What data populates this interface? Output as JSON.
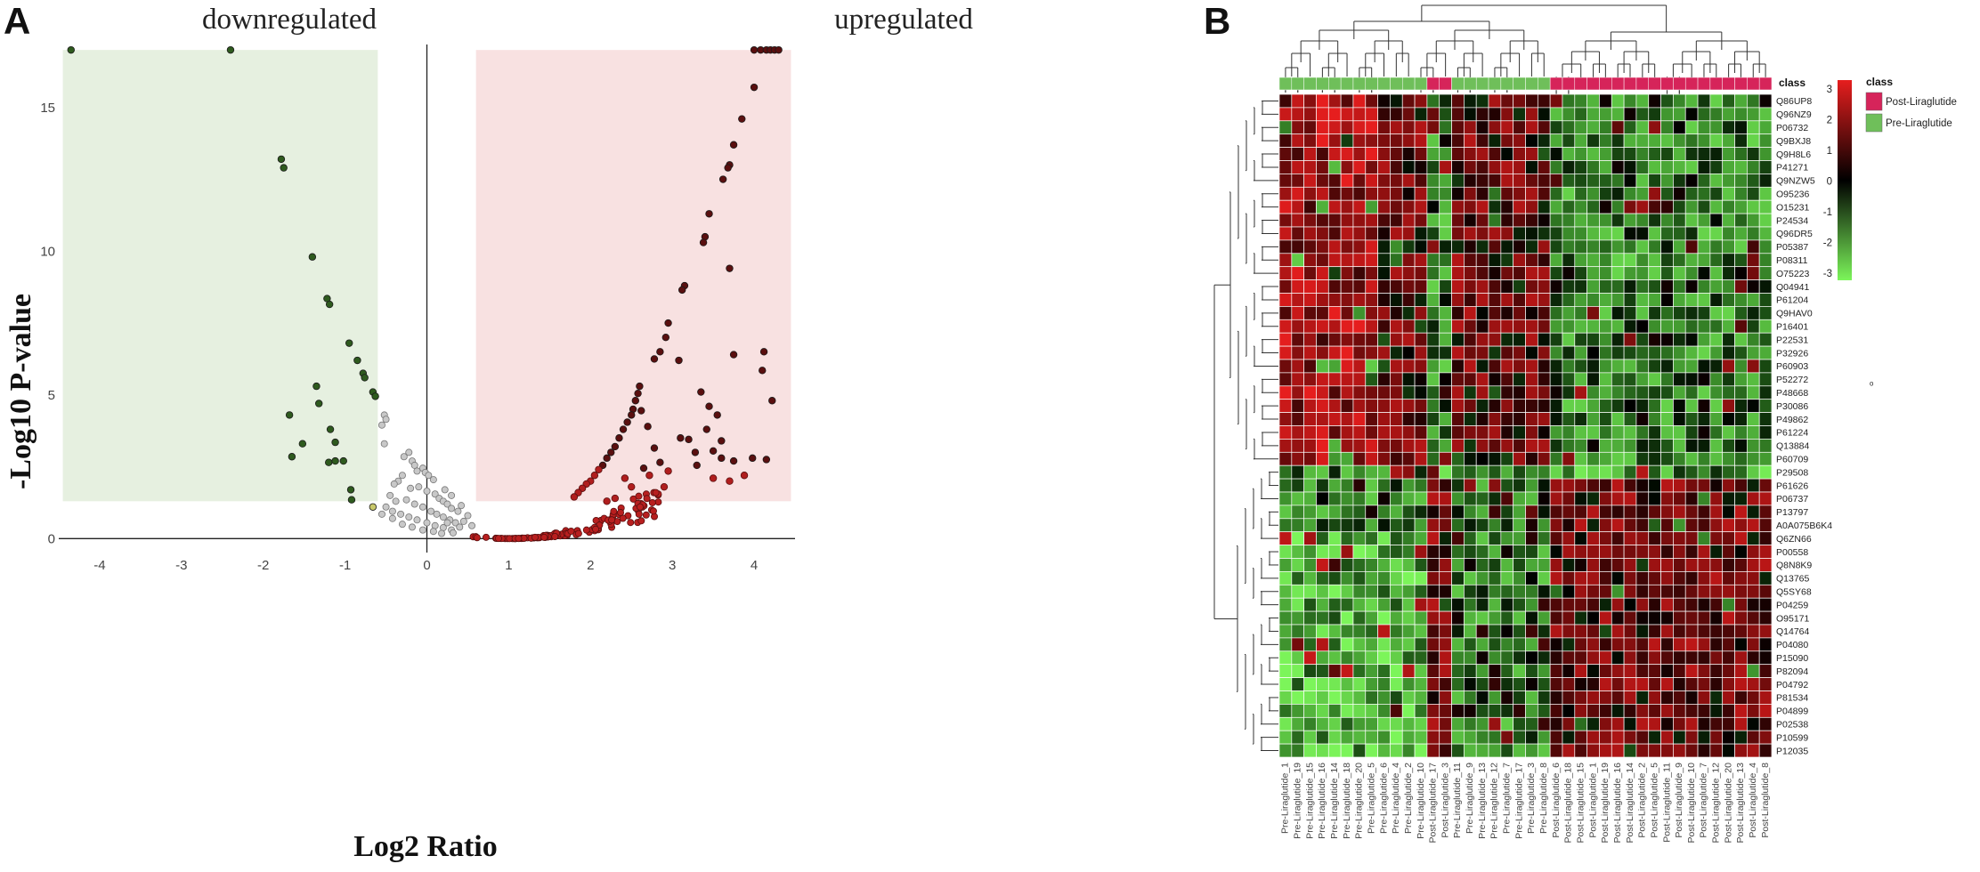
{
  "panels": {
    "a_label": "A",
    "b_label": "B"
  },
  "chart_data": [
    {
      "type": "scatter",
      "id": "volcano",
      "title": "",
      "region_left_label": "downregulated",
      "region_right_label": "upregulated",
      "xlabel": "Log2 Ratio",
      "ylabel": "-Log10 P-value",
      "xlim": [
        -4.5,
        4.5
      ],
      "ylim": [
        -0.3,
        17.5
      ],
      "xticks": [
        -4,
        -3,
        -2,
        -1,
        0,
        1,
        2,
        3,
        4
      ],
      "yticks": [
        0,
        5,
        10,
        15
      ],
      "shaded_regions": [
        {
          "name": "downregulated",
          "x": [
            -4.45,
            -0.6
          ],
          "y": [
            1.3,
            17.0
          ],
          "color": "#e6f0e0"
        },
        {
          "name": "upregulated",
          "x": [
            0.6,
            4.45
          ],
          "y": [
            1.3,
            17.0
          ],
          "color": "#f8e1e1"
        }
      ],
      "reference_lines": {
        "vertical_x": 0,
        "horizontal_y": 0
      },
      "colors": {
        "down": "#2e5a1e",
        "up": "#8b1a1a",
        "up_dark": "#5a0f0f",
        "ns": "#c8c8c8",
        "ns_edge": "#777777",
        "highlight": "#c8c86a"
      },
      "series": [
        {
          "name": "downregulated",
          "color": "#2e5a1e",
          "points": [
            [
              -4.35,
              17.0
            ],
            [
              -2.4,
              17.0
            ],
            [
              -1.78,
              13.2
            ],
            [
              -1.75,
              12.9
            ],
            [
              -1.4,
              9.8
            ],
            [
              -1.22,
              8.35
            ],
            [
              -1.19,
              8.15
            ],
            [
              -1.35,
              5.3
            ],
            [
              -1.32,
              4.7
            ],
            [
              -1.68,
              4.3
            ],
            [
              -0.95,
              6.8
            ],
            [
              -0.85,
              6.2
            ],
            [
              -0.78,
              5.75
            ],
            [
              -0.76,
              5.6
            ],
            [
              -0.66,
              5.1
            ],
            [
              -0.63,
              4.95
            ],
            [
              -1.18,
              3.8
            ],
            [
              -1.12,
              3.35
            ],
            [
              -1.52,
              3.3
            ],
            [
              -1.65,
              2.85
            ],
            [
              -1.2,
              2.65
            ],
            [
              -1.12,
              2.7
            ],
            [
              -1.02,
              2.7
            ],
            [
              -0.93,
              1.7
            ],
            [
              -0.92,
              1.35
            ]
          ]
        },
        {
          "name": "upregulated",
          "color": "#8b1a1a",
          "points": [
            [
              4.0,
              17.0
            ],
            [
              4.08,
              17.0
            ],
            [
              4.15,
              17.0
            ],
            [
              4.2,
              17.0
            ],
            [
              4.25,
              17.0
            ],
            [
              4.3,
              17.0
            ],
            [
              4.0,
              15.7
            ],
            [
              3.85,
              14.6
            ],
            [
              3.75,
              13.7
            ],
            [
              3.7,
              13.0
            ],
            [
              3.68,
              12.9
            ],
            [
              3.62,
              12.5
            ],
            [
              3.45,
              11.3
            ],
            [
              3.4,
              10.5
            ],
            [
              3.38,
              10.3
            ],
            [
              3.15,
              8.8
            ],
            [
              3.12,
              8.65
            ],
            [
              2.95,
              7.5
            ],
            [
              2.92,
              7.0
            ],
            [
              2.85,
              6.5
            ],
            [
              2.78,
              6.25
            ],
            [
              3.7,
              9.4
            ],
            [
              3.75,
              6.4
            ],
            [
              4.12,
              6.5
            ],
            [
              4.1,
              5.85
            ],
            [
              4.22,
              4.8
            ],
            [
              3.08,
              6.2
            ],
            [
              3.35,
              5.1
            ],
            [
              3.45,
              4.6
            ],
            [
              3.55,
              4.3
            ],
            [
              3.42,
              3.8
            ],
            [
              3.5,
              3.05
            ],
            [
              3.6,
              3.4
            ],
            [
              3.6,
              2.8
            ],
            [
              3.75,
              2.7
            ],
            [
              3.88,
              2.2
            ],
            [
              3.98,
              2.8
            ],
            [
              4.15,
              2.75
            ],
            [
              3.1,
              3.5
            ],
            [
              3.2,
              3.45
            ],
            [
              3.28,
              3.0
            ],
            [
              3.3,
              2.55
            ],
            [
              3.5,
              2.1
            ],
            [
              3.7,
              2.0
            ],
            [
              2.6,
              5.3
            ],
            [
              2.58,
              5.05
            ],
            [
              2.55,
              4.8
            ],
            [
              2.52,
              4.5
            ],
            [
              2.5,
              4.3
            ],
            [
              2.45,
              4.05
            ],
            [
              2.4,
              3.8
            ],
            [
              2.35,
              3.5
            ],
            [
              2.3,
              3.2
            ],
            [
              2.25,
              3.0
            ],
            [
              2.2,
              2.8
            ],
            [
              2.15,
              2.55
            ],
            [
              2.1,
              2.4
            ],
            [
              2.05,
              2.2
            ],
            [
              2.0,
              2.0
            ],
            [
              1.95,
              1.9
            ],
            [
              1.9,
              1.75
            ],
            [
              1.85,
              1.6
            ],
            [
              1.8,
              1.45
            ],
            [
              2.62,
              4.45
            ],
            [
              2.7,
              3.9
            ],
            [
              2.78,
              3.15
            ],
            [
              2.65,
              2.45
            ],
            [
              2.72,
              2.2
            ],
            [
              2.85,
              2.65
            ],
            [
              2.9,
              1.8
            ],
            [
              2.95,
              2.35
            ],
            [
              2.5,
              1.8
            ],
            [
              2.42,
              2.1
            ],
            [
              2.3,
              1.4
            ],
            [
              2.2,
              1.3
            ]
          ]
        },
        {
          "name": "not_significant",
          "color": "#c8c8c8",
          "points": [
            [
              -0.52,
              4.3
            ],
            [
              -0.5,
              4.15
            ],
            [
              -0.55,
              3.95
            ],
            [
              -0.52,
              3.3
            ],
            [
              -0.22,
              3.0
            ],
            [
              -0.28,
              2.85
            ],
            [
              -0.18,
              2.7
            ],
            [
              -0.15,
              2.55
            ],
            [
              -0.05,
              2.45
            ],
            [
              -0.02,
              2.3
            ],
            [
              0.02,
              2.2
            ],
            [
              0.08,
              2.05
            ],
            [
              -0.12,
              2.35
            ],
            [
              -0.3,
              2.2
            ],
            [
              -0.35,
              2.0
            ],
            [
              -0.4,
              1.9
            ],
            [
              -0.2,
              1.75
            ],
            [
              -0.1,
              1.8
            ],
            [
              0.0,
              1.65
            ],
            [
              0.1,
              1.55
            ],
            [
              0.15,
              1.4
            ],
            [
              0.2,
              1.3
            ],
            [
              0.25,
              1.2
            ],
            [
              0.3,
              1.05
            ],
            [
              -0.45,
              1.5
            ],
            [
              -0.38,
              1.3
            ],
            [
              -0.25,
              1.35
            ],
            [
              -0.15,
              1.2
            ],
            [
              -0.05,
              1.1
            ],
            [
              0.05,
              0.95
            ],
            [
              0.12,
              0.85
            ],
            [
              0.2,
              0.75
            ],
            [
              0.28,
              0.65
            ],
            [
              0.35,
              0.55
            ],
            [
              -0.5,
              1.1
            ],
            [
              -0.42,
              0.95
            ],
            [
              -0.32,
              0.85
            ],
            [
              -0.22,
              0.75
            ],
            [
              -0.12,
              0.65
            ],
            [
              0.0,
              0.55
            ],
            [
              0.1,
              0.45
            ],
            [
              0.2,
              0.38
            ],
            [
              0.3,
              0.3
            ],
            [
              0.4,
              0.4
            ],
            [
              0.45,
              0.6
            ],
            [
              0.5,
              0.8
            ],
            [
              -0.3,
              0.5
            ],
            [
              -0.18,
              0.4
            ],
            [
              -0.05,
              0.3
            ],
            [
              0.08,
              0.25
            ],
            [
              0.18,
              0.18
            ],
            [
              -0.42,
              0.7
            ],
            [
              -0.55,
              0.85
            ],
            [
              0.55,
              0.45
            ],
            [
              0.38,
              0.95
            ],
            [
              0.42,
              1.15
            ],
            [
              0.3,
              1.5
            ],
            [
              0.22,
              1.7
            ],
            [
              0.32,
              0.2
            ],
            [
              0.25,
              0.55
            ]
          ]
        },
        {
          "name": "highlight",
          "color": "#c8c86a",
          "points": [
            [
              -0.66,
              1.1
            ]
          ]
        }
      ]
    },
    {
      "type": "heatmap",
      "id": "heatmap",
      "row_labels": [
        "Q86UP8",
        "Q96NZ9",
        "P06732",
        "Q9BXJ8",
        "Q9H8L6",
        "P41271",
        "Q9NZW5",
        "O95236",
        "O15231",
        "P24534",
        "Q96DR5",
        "P05387",
        "P08311",
        "O75223",
        "Q04941",
        "P61204",
        "Q9HAV0",
        "P16401",
        "P22531",
        "P32926",
        "P60903",
        "P52272",
        "P48668",
        "P30086",
        "P49862",
        "P61224",
        "Q13884",
        "P60709",
        "P29508",
        "P61626",
        "P06737",
        "P13797",
        "A0A075B6K4",
        "Q6ZN66",
        "P00558",
        "Q8N8K9",
        "Q13765",
        "Q5SY68",
        "P04259",
        "O95171",
        "Q14764",
        "P04080",
        "P15090",
        "P82094",
        "P04792",
        "P81534",
        "P04899",
        "P02538",
        "P10599",
        "P12035"
      ],
      "col_labels": [
        "Pre-Liraglutide_1",
        "Pre-Liraglutide_19",
        "Pre-Liraglutide_15",
        "Pre-Liraglutide_16",
        "Pre-Liraglutide_14",
        "Pre-Liraglutide_18",
        "Pre-Liraglutide_20",
        "Pre-Liraglutide_5",
        "Pre-Liraglutide_6",
        "Pre-Liraglutide_4",
        "Pre-Liraglutide_2",
        "Pre-Liraglutide_10",
        "Post-Liraglutide_17",
        "Post-Liraglutide_3",
        "Pre-Liraglutide_11",
        "Pre-Liraglutide_9",
        "Pre-Liraglutide_13",
        "Pre-Liraglutide_12",
        "Pre-Liraglutide_7",
        "Pre-Liraglutide_17",
        "Pre-Liraglutide_3",
        "Pre-Liraglutide_8",
        "Post-Liraglutide_6",
        "Post-Liraglutide_18",
        "Post-Liraglutide_15",
        "Post-Liraglutide_1",
        "Post-Liraglutide_19",
        "Post-Liraglutide_16",
        "Post-Liraglutide_14",
        "Post-Liraglutide_2",
        "Post-Liraglutide_5",
        "Post-Liraglutide_11",
        "Post-Liraglutide_9",
        "Post-Liraglutide_10",
        "Post-Liraglutide_7",
        "Post-Liraglutide_12",
        "Post-Liraglutide_20",
        "Post-Liraglutide_13",
        "Post-Liraglutide_4",
        "Post-Liraglutide_8"
      ],
      "col_class": [
        "Pre",
        "Pre",
        "Pre",
        "Pre",
        "Pre",
        "Pre",
        "Pre",
        "Pre",
        "Pre",
        "Pre",
        "Pre",
        "Pre",
        "Post",
        "Post",
        "Pre",
        "Pre",
        "Pre",
        "Pre",
        "Pre",
        "Pre",
        "Pre",
        "Pre",
        "Post",
        "Post",
        "Post",
        "Post",
        "Post",
        "Post",
        "Post",
        "Post",
        "Post",
        "Post",
        "Post",
        "Post",
        "Post",
        "Post",
        "Post",
        "Post",
        "Post",
        "Post"
      ],
      "class_header": "class",
      "color_scale": {
        "min": -3,
        "max": 3,
        "low": "#7cf55a",
        "mid": "#000000",
        "high": "#e61e1e"
      },
      "colorbar_ticks": [
        "3",
        "2",
        "1",
        "0",
        "-1",
        "-2",
        "-3"
      ],
      "legend": {
        "title": "class",
        "items": [
          {
            "label": "Post-Liraglutide",
            "color": "#d6245a"
          },
          {
            "label": "Pre-Liraglutide",
            "color": "#6fbf5a"
          }
        ]
      },
      "pattern": {
        "upper_rows": 28,
        "separator_row": 28,
        "note": "Upper block: high in Pre, low in Post. Lower block: low in Pre, high in Post. Cell values vary approximately within [-3, 3]."
      }
    }
  ]
}
